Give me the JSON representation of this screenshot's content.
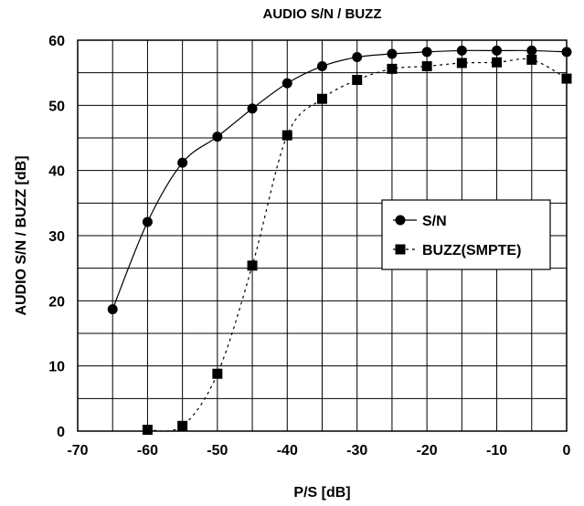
{
  "chart_data": {
    "type": "line",
    "title": "AUDIO S/N / BUZZ",
    "xlabel": "P/S [dB]",
    "ylabel": "AUDIO S/N / BUZZ [dB]",
    "xlim": [
      -70,
      0
    ],
    "ylim": [
      0,
      60
    ],
    "xticks": [
      -70,
      -60,
      -50,
      -40,
      -30,
      -20,
      -10,
      0
    ],
    "yticks": [
      0,
      10,
      20,
      30,
      40,
      50,
      60
    ],
    "xtick_labels": [
      "-70",
      "-60",
      "-50",
      "-40",
      "-30",
      "-20",
      "-10",
      "0"
    ],
    "ytick_labels": [
      "0",
      "10",
      "20",
      "30",
      "40",
      "50",
      "60"
    ],
    "grid": true,
    "legend_position": "right",
    "series": [
      {
        "name": "S/N",
        "marker": "circle",
        "line": "solid",
        "color": "#000000",
        "x": [
          -65,
          -60,
          -55,
          -50,
          -45,
          -40,
          -35,
          -30,
          -25,
          -20,
          -15,
          -10,
          -5,
          0
        ],
        "y": [
          18.7,
          32.1,
          41.2,
          45.2,
          49.5,
          53.4,
          56.0,
          57.4,
          57.9,
          58.2,
          58.4,
          58.4,
          58.4,
          58.2
        ]
      },
      {
        "name": "BUZZ(SMPTE)",
        "marker": "square",
        "line": "dotted",
        "color": "#000000",
        "x": [
          -60,
          -55,
          -50,
          -45,
          -40,
          -35,
          -30,
          -25,
          -20,
          -15,
          -10,
          -5,
          0
        ],
        "y": [
          0.2,
          0.8,
          8.8,
          25.4,
          45.4,
          51.0,
          53.9,
          55.6,
          56.0,
          56.5,
          56.6,
          57.0,
          54.1
        ]
      }
    ]
  }
}
